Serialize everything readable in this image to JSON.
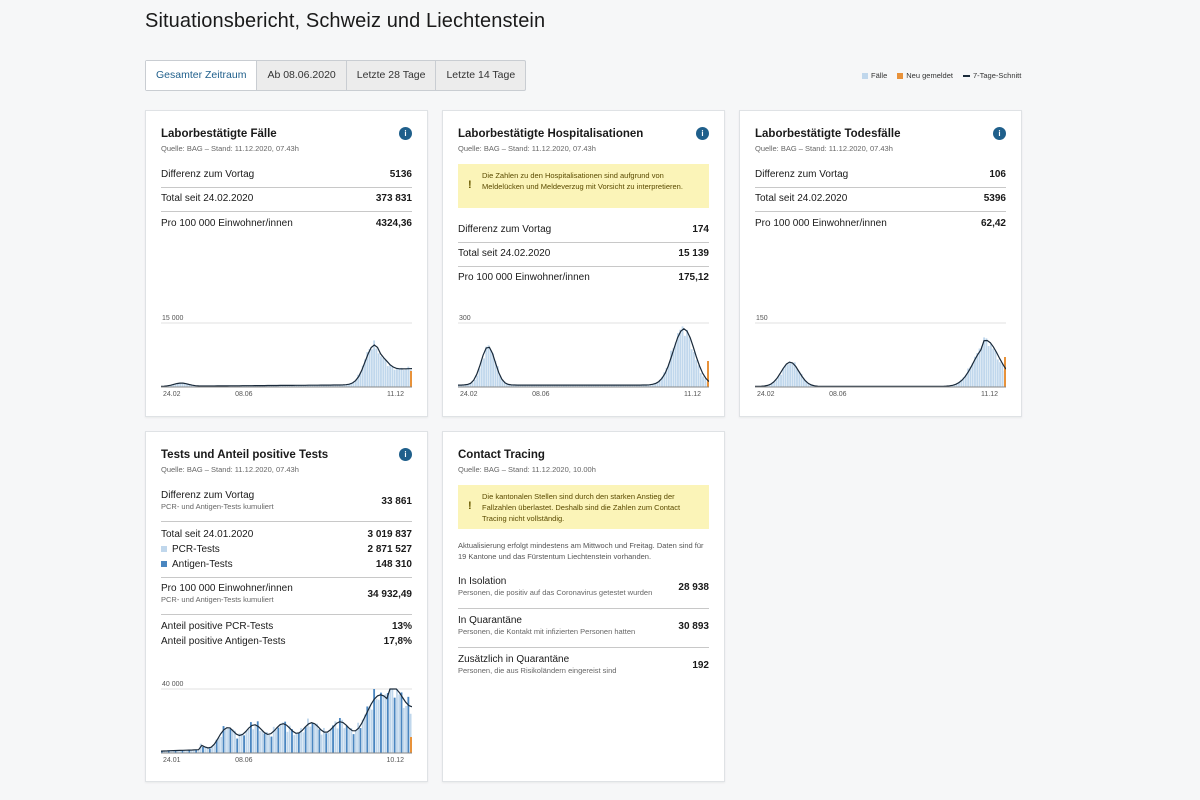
{
  "page": {
    "title": "Situationsbericht, Schweiz und Liechtenstein"
  },
  "tabs": [
    "Gesamter Zeitraum",
    "Ab 08.06.2020",
    "Letzte 28 Tage",
    "Letzte 14 Tage"
  ],
  "legend": {
    "cases": "Fälle",
    "new": "Neu gemeldet",
    "avg": "7-Tage-Schnitt"
  },
  "colors": {
    "accent": "#1f5f8b",
    "bar": "#c0d7ec",
    "new": "#e8923a",
    "line": "#1a2a3a",
    "bar_dark": "#4a86c0",
    "warn_bg": "#fbf4b8"
  },
  "cards": {
    "cases": {
      "title": "Laborbestätigte Fälle",
      "source": "Quelle: BAG – Stand: 11.12.2020, 07.43h",
      "rows": [
        {
          "label": "Differenz zum Vortag",
          "value": "5136"
        },
        {
          "label": "Total seit 24.02.2020",
          "value": "373 831"
        },
        {
          "label": "Pro 100 000 Einwohner/innen",
          "value": "4324,36"
        }
      ],
      "chart": {
        "ymax_label": "15 000",
        "x_labels": [
          "24.02",
          "08.06",
          "11.12"
        ]
      }
    },
    "hosp": {
      "title": "Laborbestätigte Hospitalisationen",
      "source": "Quelle: BAG – Stand: 11.12.2020, 07.43h",
      "warning": "Die Zahlen zu den Hospitalisationen sind aufgrund von Meldelücken und Meldeverzug mit Vorsicht zu interpretieren.",
      "rows": [
        {
          "label": "Differenz zum Vortag",
          "value": "174"
        },
        {
          "label": "Total seit 24.02.2020",
          "value": "15 139"
        },
        {
          "label": "Pro 100 000 Einwohner/innen",
          "value": "175,12"
        }
      ],
      "chart": {
        "ymax_label": "300",
        "x_labels": [
          "24.02",
          "08.06",
          "11.12"
        ]
      }
    },
    "deaths": {
      "title": "Laborbestätigte Todesfälle",
      "source": "Quelle: BAG – Stand: 11.12.2020, 07.43h",
      "rows": [
        {
          "label": "Differenz zum Vortag",
          "value": "106"
        },
        {
          "label": "Total seit 24.02.2020",
          "value": "5396"
        },
        {
          "label": "Pro 100 000 Einwohner/innen",
          "value": "62,42"
        }
      ],
      "chart": {
        "ymax_label": "150",
        "x_labels": [
          "24.02",
          "08.06",
          "11.12"
        ]
      }
    },
    "tests": {
      "title": "Tests und Anteil positive Tests",
      "source": "Quelle: BAG – Stand: 11.12.2020, 07.43h",
      "diff": {
        "label": "Differenz zum Vortag",
        "sub": "PCR- und Antigen-Tests kumuliert",
        "value": "33 861"
      },
      "total": {
        "label": "Total seit 24.01.2020",
        "value": "3 019 837"
      },
      "pcr": {
        "label": "PCR-Tests",
        "value": "2 871 527"
      },
      "antigen": {
        "label": "Antigen-Tests",
        "value": "148 310"
      },
      "per100k": {
        "label": "Pro 100 000 Einwohner/innen",
        "sub": "PCR- und Antigen-Tests kumuliert",
        "value": "34 932,49"
      },
      "pos_pcr": {
        "label": "Anteil positive PCR-Tests",
        "value": "13%"
      },
      "pos_ag": {
        "label": "Anteil positive Antigen-Tests",
        "value": "17,8%"
      },
      "chart": {
        "ymax_label": "40 000",
        "x_labels": [
          "24.01",
          "08.06",
          "10.12"
        ]
      }
    },
    "ct": {
      "title": "Contact Tracing",
      "source": "Quelle: BAG – Stand: 11.12.2020, 10.00h",
      "warning": "Die kantonalen Stellen sind durch den starken Anstieg der Fallzahlen überlastet. Deshalb sind die Zahlen zum Contact Tracing nicht vollständig.",
      "note": "Aktualisierung erfolgt mindestens am Mittwoch und Freitag. Daten sind für 19 Kantone und das Fürstentum Liechtenstein vorhanden.",
      "rows": [
        {
          "label": "In Isolation",
          "sub": "Personen, die positiv auf das Coronavirus getestet wurden",
          "value": "28 938"
        },
        {
          "label": "In Quarantäne",
          "sub": "Personen, die Kontakt mit infizierten Personen hatten",
          "value": "30 893"
        },
        {
          "label": "Zusätzlich in Quarantäne",
          "sub": "Personen, die aus Risikoländern eingereist sind",
          "value": "192"
        }
      ]
    }
  }
}
